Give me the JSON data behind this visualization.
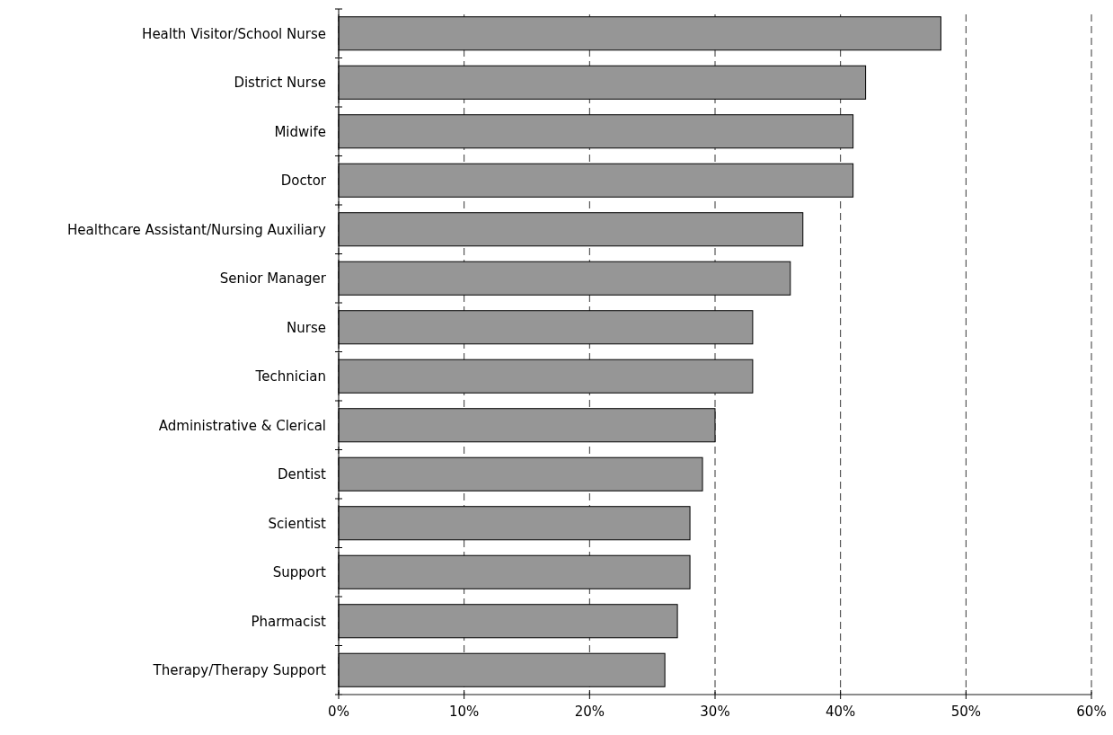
{
  "chart_data": {
    "type": "bar",
    "orientation": "horizontal",
    "categories": [
      "Health Visitor/School Nurse",
      "District Nurse",
      "Midwife",
      "Doctor",
      "Healthcare Assistant/Nursing Auxiliary",
      "Senior Manager",
      "Nurse",
      "Technician",
      "Administrative & Clerical",
      "Dentist",
      "Scientist",
      "Support",
      "Pharmacist",
      "Therapy/Therapy Support"
    ],
    "values": [
      48,
      42,
      41,
      41,
      37,
      36,
      33,
      33,
      30,
      29,
      28,
      28,
      27,
      26
    ],
    "color": "#969696",
    "xlim": [
      0,
      60
    ],
    "xticks": [
      {
        "value": 0,
        "label": "0%"
      },
      {
        "value": 10,
        "label": "10%"
      },
      {
        "value": 20,
        "label": "20%"
      },
      {
        "value": 30,
        "label": "30%"
      },
      {
        "value": 40,
        "label": "40%"
      },
      {
        "value": 50,
        "label": "50%"
      },
      {
        "value": 60,
        "label": "60%"
      }
    ],
    "grid": "x"
  }
}
